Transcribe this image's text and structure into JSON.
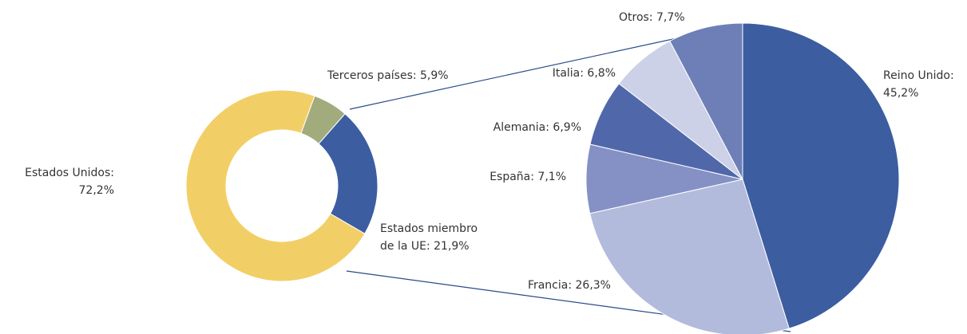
{
  "chart_data": [
    {
      "type": "donut",
      "categories": [
        [
          "Terceros países: 5,9%"
        ],
        [
          "Estados miembro",
          "de la UE: 21,9%"
        ],
        [
          "Estados Unidos:",
          "72,2%"
        ]
      ],
      "values": [
        5.9,
        21.9,
        72.2
      ],
      "colors": [
        "#a2ab7c",
        "#3c5da0",
        "#f2cf66"
      ]
    },
    {
      "type": "pie",
      "categories": [
        [
          "Reino Unido:",
          "45,2%"
        ],
        [
          "Francia: 26,3%"
        ],
        [
          "España: 7,1%"
        ],
        [
          "Alemania: 6,9%"
        ],
        [
          "Italia: 6,8%"
        ],
        [
          "Otros: 7,7%"
        ]
      ],
      "values": [
        45.2,
        26.3,
        7.1,
        6.9,
        6.8,
        7.7
      ],
      "colors": [
        "#3c5da0",
        "#b3bbdc",
        "#8591c4",
        "#5068aa",
        "#ccd1e8",
        "#6e7fb8"
      ]
    }
  ]
}
